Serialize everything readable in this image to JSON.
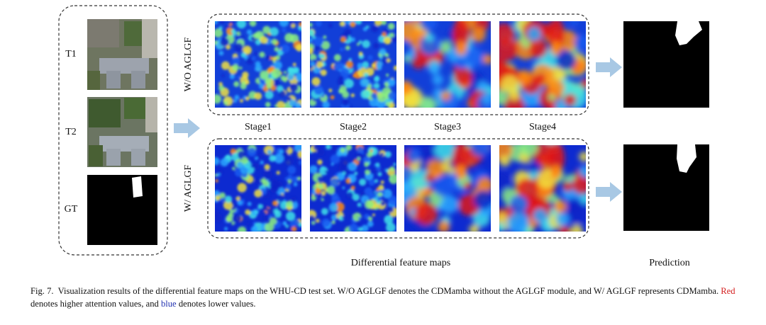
{
  "figure": {
    "inputs": [
      "T1",
      "T2",
      "GT"
    ],
    "rows": [
      "W/O AGLGF",
      "W/ AGLGF"
    ],
    "stages": [
      "Stage1",
      "Stage2",
      "Stage3",
      "Stage4"
    ],
    "group_label": "Differential feature maps",
    "prediction_label": "Prediction",
    "caption": {
      "label": "Fig. 7.",
      "text_1": "Visualization results of the differential feature maps on the WHU-CD test set. W/O AGLGF denotes the CDMamba without the AGLGF module, and W/ AGLGF represents CDMamba.",
      "red_word": "Red",
      "text_2": "denotes higher attention values, and",
      "blue_word": "blue",
      "text_3": "denotes lower values."
    }
  }
}
